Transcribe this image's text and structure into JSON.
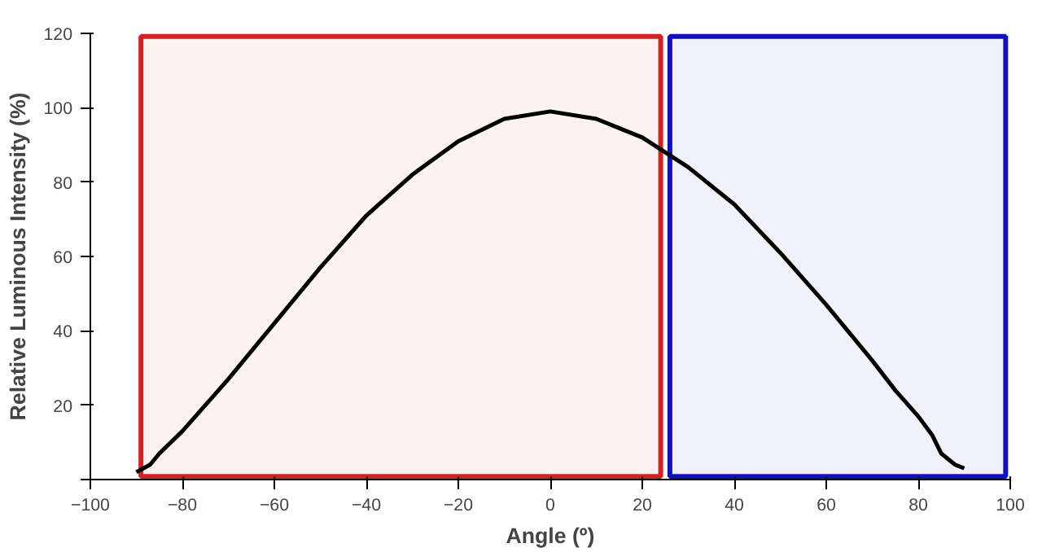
{
  "chart_data": {
    "type": "line",
    "xlabel": "Angle (º)",
    "ylabel": "Relative Luminous Intensity (%)",
    "x": [
      -90,
      -87,
      -85,
      -80,
      -75,
      -70,
      -60,
      -50,
      -40,
      -30,
      -20,
      -10,
      0,
      10,
      20,
      30,
      40,
      50,
      60,
      70,
      75,
      80,
      83,
      85,
      88,
      90
    ],
    "series": [
      {
        "color": "#000000",
        "values": [
          2,
          4,
          7,
          13,
          20,
          27,
          42,
          57,
          71,
          82,
          91,
          97,
          99,
          97,
          92,
          84,
          74,
          61,
          47,
          32,
          24,
          17,
          12,
          7,
          4,
          3
        ]
      }
    ],
    "xlim": [
      -100,
      100
    ],
    "xticks": [
      -100,
      -80,
      -60,
      -40,
      -20,
      0,
      20,
      40,
      60,
      80,
      100
    ],
    "ylim": [
      0,
      120
    ],
    "yticks": [
      {
        "value": 0,
        "label": null
      },
      20,
      40,
      60,
      80,
      100,
      120
    ],
    "grid": false,
    "marker": "none",
    "line_style": "solid",
    "bands": [
      {
        "axis": "x",
        "from": -89,
        "to": 24,
        "color": "#d42020"
      },
      {
        "axis": "x",
        "from": 26,
        "to": 99,
        "color": "#1010c0"
      }
    ]
  }
}
